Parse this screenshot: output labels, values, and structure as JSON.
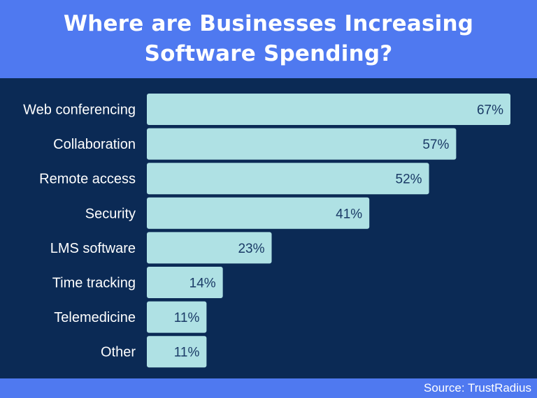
{
  "title": "Where are Businesses Increasing Software Spending?",
  "source": "Source: TrustRadius",
  "colors": {
    "header": "#4f79f0",
    "background": "#0b2a55",
    "bar": "#afe1e4",
    "label": "#ffffff",
    "value": "#1a3a66"
  },
  "chart_data": {
    "type": "bar",
    "orientation": "horizontal",
    "title": "Where are Businesses Increasing Software Spending?",
    "xlabel": "",
    "ylabel": "",
    "xlim": [
      0,
      67
    ],
    "grid": false,
    "categories": [
      "Web conferencing",
      "Collaboration",
      "Remote access",
      "Security",
      "LMS software",
      "Time tracking",
      "Telemedicine",
      "Other"
    ],
    "values": [
      67,
      57,
      52,
      41,
      23,
      14,
      11,
      11
    ],
    "value_labels": [
      "67%",
      "57%",
      "52%",
      "41%",
      "23%",
      "14%",
      "11%",
      "11%"
    ]
  }
}
